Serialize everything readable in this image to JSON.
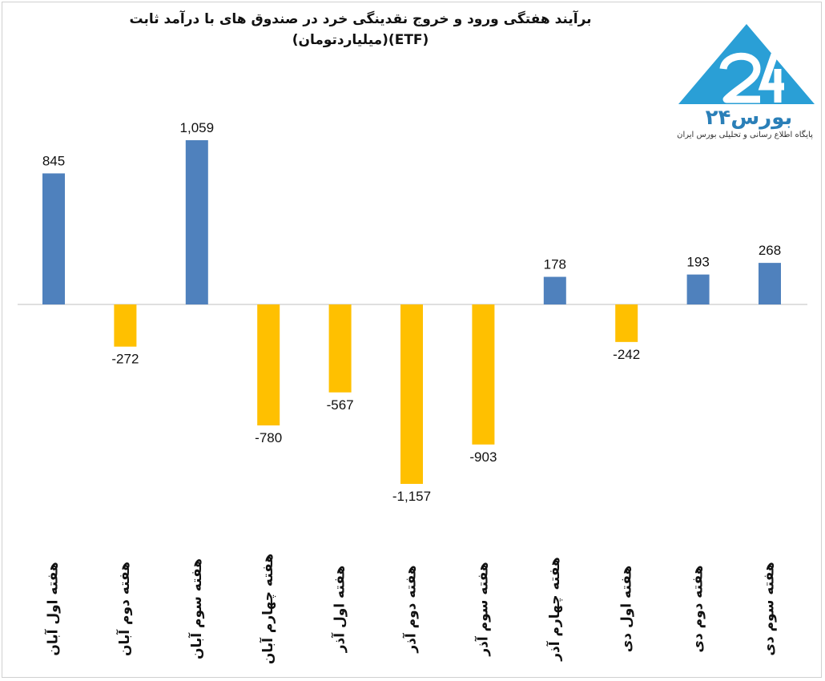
{
  "chart_data": {
    "type": "bar",
    "title": "برآیند هفتگی ورود و خروج نقدینگی خرد در صندوق های با درآمد ثابت",
    "subtitle": "(ETF)(میلیاردتومان)",
    "categories": [
      "هفته اول آبان",
      "هفته دوم آبان",
      "هفته سوم آبان",
      "هفته چهارم آبان",
      "هفته اول آذر",
      "هفته دوم آذر",
      "هفته سوم آذر",
      "هفته چهارم آذر",
      "هفته اول دی",
      "هفته دوم دی",
      "هفته سوم دی"
    ],
    "values": [
      845,
      -272,
      1059,
      -780,
      -567,
      -1157,
      -903,
      178,
      -242,
      193,
      268
    ],
    "labels": [
      "845",
      "-272",
      "1,059",
      "-780",
      "-567",
      "-1,157",
      "-903",
      "178",
      "-242",
      "193",
      "268"
    ],
    "positive_color": "#4f81bd",
    "negative_color": "#ffc000",
    "ylim": [
      -1157,
      1059
    ],
    "grid": false,
    "legend": "none"
  },
  "logo": {
    "name": "بورس۲۴",
    "tagline": "پایگاه اطلاع رسانی و تحلیلی بورس ایران",
    "color": "#2a7fb8"
  }
}
